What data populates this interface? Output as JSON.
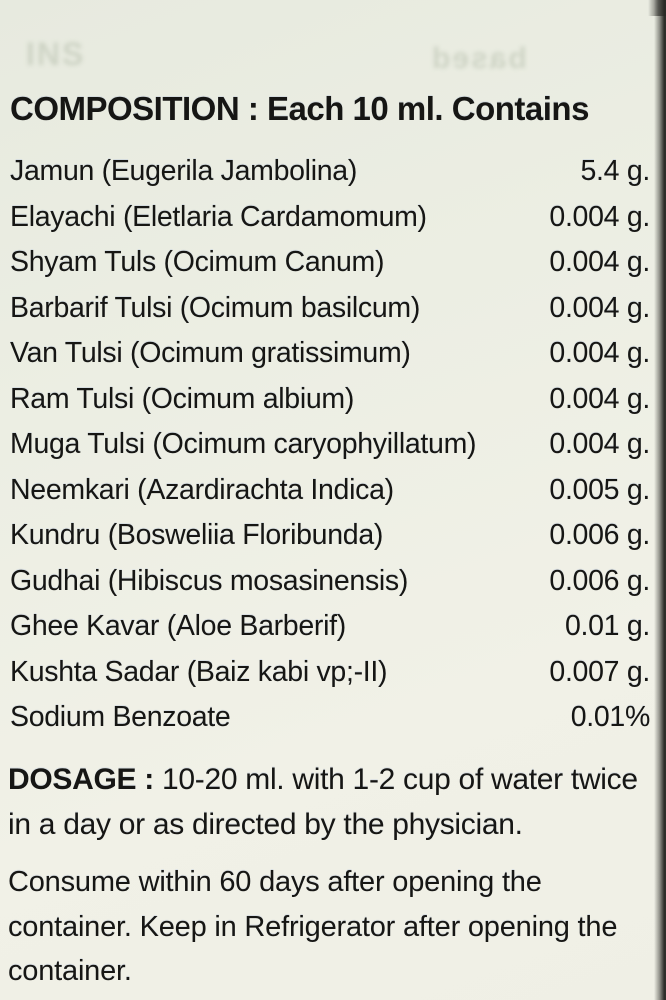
{
  "label": {
    "heading": "COMPOSITION : Each 10 ml. Contains",
    "ingredients": [
      {
        "name": "Jamun (Eugerila Jambolina)",
        "amount": "5.4 g."
      },
      {
        "name": "Elayachi (Eletlaria Cardamomum)",
        "amount": "0.004 g."
      },
      {
        "name": "Shyam Tuls (Ocimum Canum)",
        "amount": "0.004 g."
      },
      {
        "name": "Barbarif Tulsi (Ocimum basilcum)",
        "amount": "0.004 g."
      },
      {
        "name": "Van Tulsi (Ocimum gratissimum)",
        "amount": "0.004 g."
      },
      {
        "name": "Ram Tulsi (Ocimum albium)",
        "amount": "0.004 g."
      },
      {
        "name": "Muga Tulsi (Ocimum caryophyillatum)",
        "amount": "0.004 g."
      },
      {
        "name": "Neemkari (Azardirachta Indica)",
        "amount": "0.005 g."
      },
      {
        "name": "Kundru (Bosweliia Floribunda)",
        "amount": "0.006 g."
      },
      {
        "name": "Gudhai (Hibiscus mosasinensis)",
        "amount": "0.006 g."
      },
      {
        "name": "Ghee Kavar (Aloe Barberif)",
        "amount": "0.01 g."
      },
      {
        "name": "Kushta Sadar (Baiz kabi  vp;-II)",
        "amount": "0.007 g."
      },
      {
        "name": "Sodium Benzoate",
        "amount": "0.01%"
      }
    ],
    "dosage_label": "DOSAGE :",
    "dosage_text": " 10-20 ml. with 1-2 cup of water twice in a day or as directed by the physician.",
    "storage_text": "Consume within 60 days after opening the container. Keep in Refrigerator after opening the container.",
    "ghost_text_left": "INS",
    "ghost_text_right": "based"
  },
  "colors": {
    "background_top": "#e7eadf",
    "background_bottom": "#f1f1e7",
    "text": "#161614",
    "edge_shadow": "#2e2e2a"
  }
}
